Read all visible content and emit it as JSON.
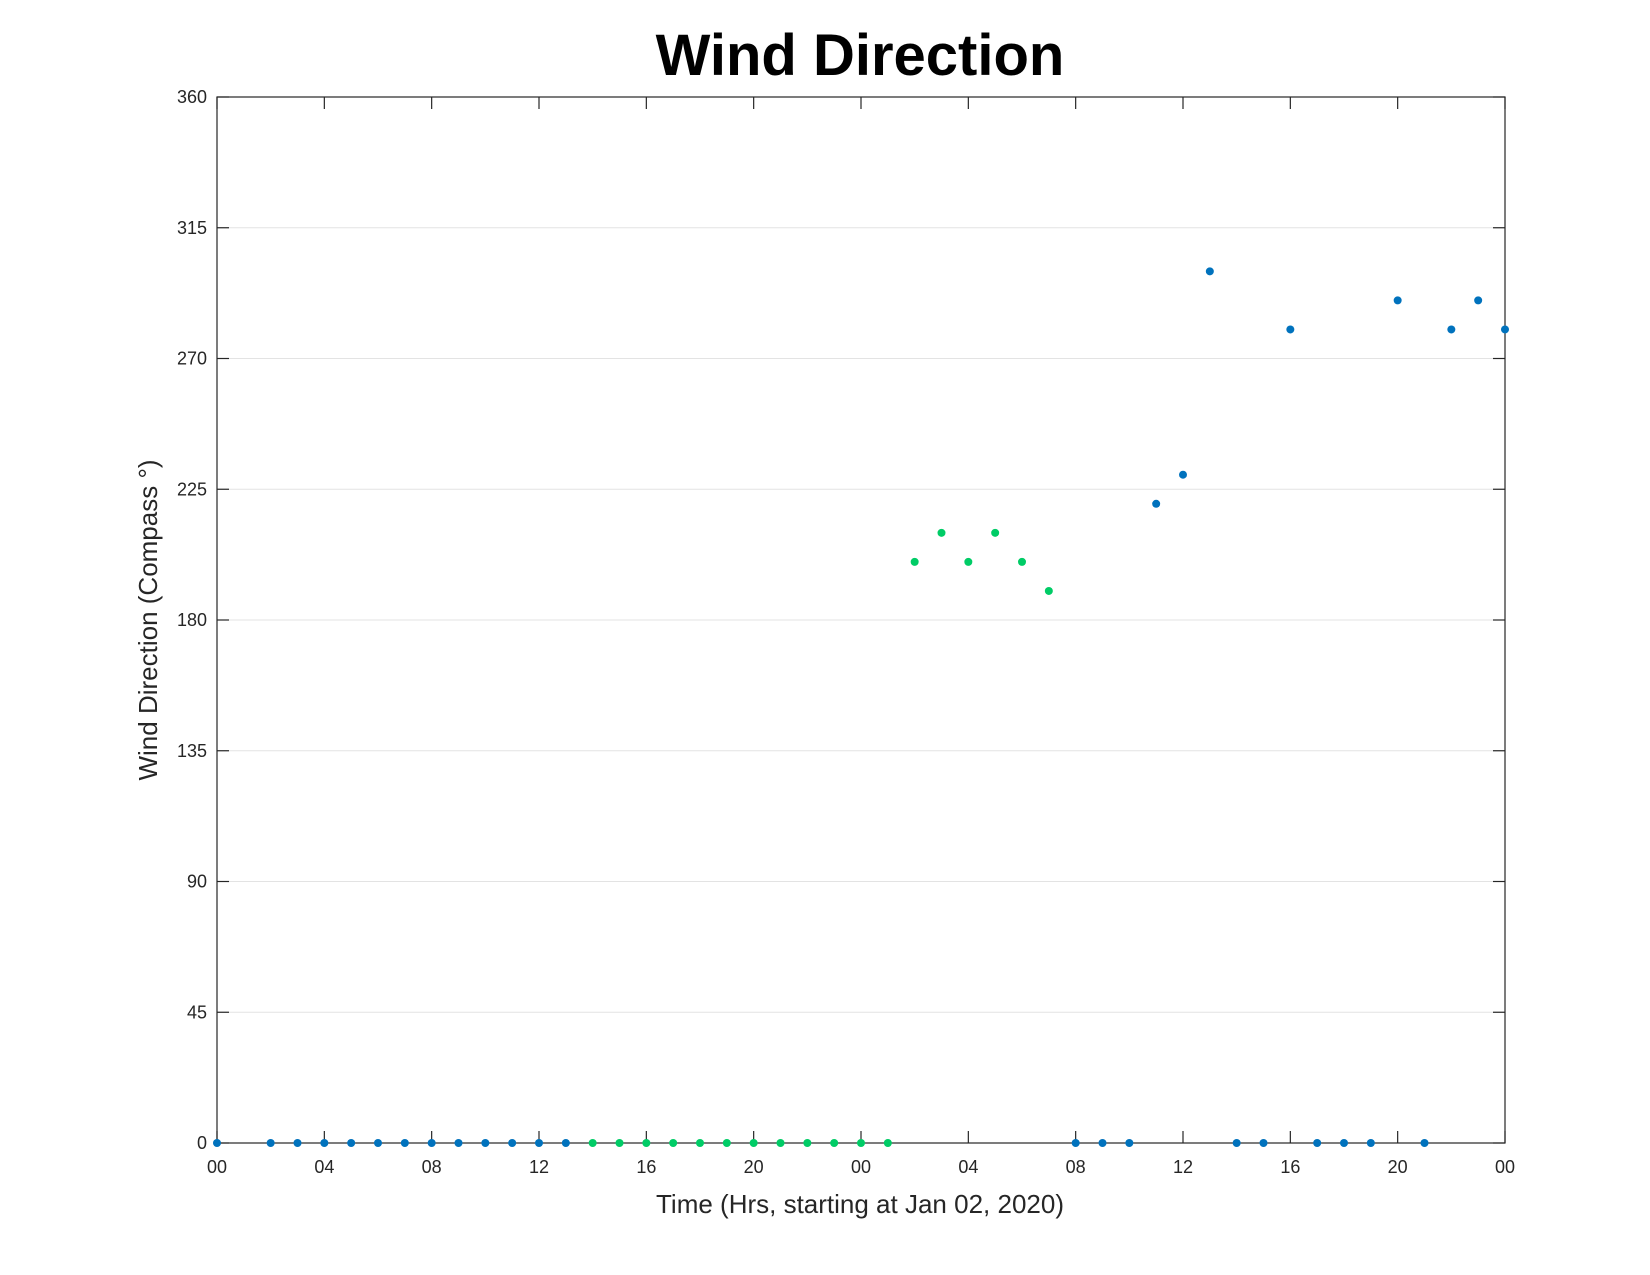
{
  "chart_data": {
    "type": "scatter",
    "title": "Wind Direction",
    "xlabel": "Time (Hrs, starting at Jan 02, 2020)",
    "ylabel": "Wind Direction (Compass °)",
    "xlim": [
      0,
      48
    ],
    "ylim": [
      0,
      360
    ],
    "x_ticks": [
      0,
      4,
      8,
      12,
      16,
      20,
      24,
      28,
      32,
      36,
      40,
      44,
      48
    ],
    "x_tick_labels": [
      "00",
      "04",
      "08",
      "12",
      "16",
      "20",
      "00",
      "04",
      "08",
      "12",
      "16",
      "20",
      "00"
    ],
    "y_ticks": [
      0,
      45,
      90,
      135,
      180,
      225,
      270,
      315,
      360
    ],
    "y_tick_labels": [
      "0",
      "45",
      "90",
      "135",
      "180",
      "225",
      "270",
      "315",
      "360"
    ],
    "grid": "horizontal",
    "colors": {
      "blue": "#0072bd",
      "green": "#00cc66"
    },
    "series": [
      {
        "color_key": "blue",
        "points": [
          [
            0,
            0
          ],
          [
            2,
            0
          ],
          [
            3,
            0
          ],
          [
            4,
            0
          ],
          [
            5,
            0
          ],
          [
            6,
            0
          ],
          [
            7,
            0
          ],
          [
            8,
            0
          ],
          [
            9,
            0
          ],
          [
            10,
            0
          ],
          [
            11,
            0
          ],
          [
            12,
            0
          ],
          [
            13,
            0
          ],
          [
            32,
            0
          ],
          [
            33,
            0
          ],
          [
            34,
            0
          ],
          [
            35,
            220
          ],
          [
            36,
            230
          ],
          [
            37,
            300
          ],
          [
            38,
            0
          ],
          [
            39,
            0
          ],
          [
            40,
            280
          ],
          [
            41,
            0
          ],
          [
            42,
            0
          ],
          [
            43,
            0
          ],
          [
            44,
            290
          ],
          [
            45,
            0
          ],
          [
            46,
            280
          ],
          [
            47,
            290
          ],
          [
            48,
            280
          ]
        ]
      },
      {
        "color_key": "green",
        "points": [
          [
            14,
            0
          ],
          [
            15,
            0
          ],
          [
            16,
            0
          ],
          [
            17,
            0
          ],
          [
            18,
            0
          ],
          [
            19,
            0
          ],
          [
            20,
            0
          ],
          [
            21,
            0
          ],
          [
            22,
            0
          ],
          [
            23,
            0
          ],
          [
            24,
            0
          ],
          [
            25,
            0
          ],
          [
            26,
            200
          ],
          [
            27,
            210
          ],
          [
            28,
            200
          ],
          [
            29,
            210
          ],
          [
            30,
            200
          ],
          [
            31,
            190
          ]
        ]
      }
    ]
  }
}
